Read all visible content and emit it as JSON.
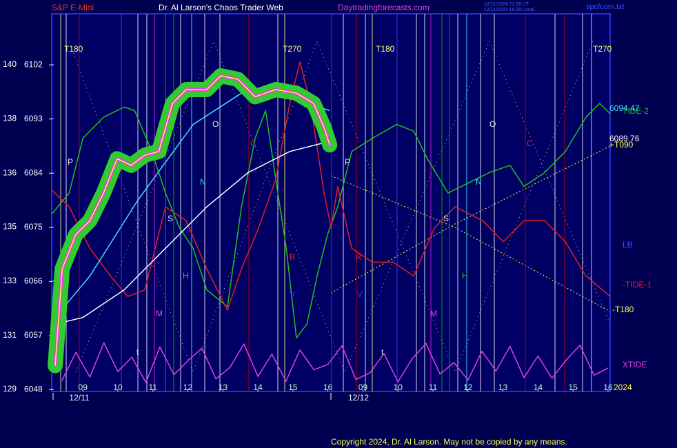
{
  "chart_data": {
    "type": "line",
    "title": "Dr. Al Larson's Chaos Trader Web",
    "header": [
      "S&P E-Mini",
      "Daytradingforecasts.com",
      "12/11/2024 21:38 UT",
      "12/11/2024 16:38 Local",
      "spcfcom.txt"
    ],
    "footer": "Copyright 2024, Dr. Al Larson. May not be copied by any means.",
    "dates": [
      "12/11",
      "12/12"
    ],
    "year": "2024",
    "xlim": [
      -0.89,
      15.06
    ],
    "ylim": [
      6047.7,
      6110.5
    ],
    "y2lim": [
      128.93,
      141.73
    ],
    "xticks": [
      {
        "value": 0,
        "label": "09"
      },
      {
        "value": 1,
        "label": "10"
      },
      {
        "value": 2,
        "label": "11"
      },
      {
        "value": 3,
        "label": "12"
      },
      {
        "value": 4,
        "label": "13"
      },
      {
        "value": 5,
        "label": "14"
      },
      {
        "value": 6,
        "label": "15"
      },
      {
        "value": 7,
        "label": "16"
      },
      {
        "value": 8,
        "label": "09"
      },
      {
        "value": 9,
        "label": "10"
      },
      {
        "value": 10,
        "label": "11"
      },
      {
        "value": 11,
        "label": "12"
      },
      {
        "value": 12,
        "label": "13"
      },
      {
        "value": 13,
        "label": "14"
      },
      {
        "value": 14,
        "label": "15"
      },
      {
        "value": 15,
        "label": "16"
      }
    ],
    "yticks": [
      6048,
      6057,
      6066,
      6075,
      6084,
      6093,
      6102
    ],
    "y2ticks": [
      {
        "value": 129.0,
        "label": "129"
      },
      {
        "value": 130.83,
        "label": "131"
      },
      {
        "value": 132.67,
        "label": "133"
      },
      {
        "value": 134.5,
        "label": "135"
      },
      {
        "value": 136.33,
        "label": "136"
      },
      {
        "value": 138.17,
        "label": "138"
      },
      {
        "value": 140.0,
        "label": "140"
      }
    ],
    "series": [
      {
        "name": "TIDE-2",
        "color": "#20c020",
        "x": [
          -0.89,
          -0.39,
          0,
          0.59,
          1.18,
          1.48,
          1.97,
          2.36,
          2.76,
          3.15,
          3.54,
          4.13,
          4.53,
          4.92,
          5.22,
          5.51,
          5.81,
          6.1,
          6.4,
          6.69,
          6.99,
          7.28,
          7.68,
          8.27,
          8.96,
          9.45,
          9.84,
          10.43,
          11.02,
          11.61,
          12.2,
          12.6,
          13.19,
          13.78,
          14.37,
          14.76,
          15.06
        ],
        "values": [
          6077.2,
          6080.7,
          6089.8,
          6093.3,
          6095.0,
          6094.4,
          6087.6,
          6080.7,
          6074.9,
          6071.5,
          6064.6,
          6061.8,
          6078.4,
          6089.8,
          6094.4,
          6083.0,
          6071.5,
          6056.6,
          6058.9,
          6066.9,
          6073.8,
          6078.4,
          6087.6,
          6089.8,
          6092.1,
          6091.0,
          6086.4,
          6080.7,
          6082.4,
          6084.1,
          6085.3,
          6081.8,
          6084.1,
          6087.6,
          6093.3,
          6095.6,
          6093.9
        ]
      },
      {
        "name": "-TIDE-1",
        "color": "#e02020",
        "x": [
          -0.89,
          -0.39,
          0.2,
          0.79,
          1.28,
          1.77,
          2.36,
          2.95,
          3.54,
          4.13,
          4.53,
          5.02,
          5.51,
          5.91,
          6.2,
          6.5,
          6.89,
          7.09,
          7.28,
          7.68,
          8.27,
          8.86,
          9.45,
          10.04,
          10.63,
          11.42,
          12.01,
          12.6,
          13.19,
          13.78,
          14.37,
          15.06
        ],
        "values": [
          6081.2,
          6078.4,
          6071.5,
          6066.9,
          6063.5,
          6064.6,
          6078.4,
          6076.1,
          6068.1,
          6061.2,
          6068.1,
          6074.9,
          6083.0,
          6095.6,
          6102.5,
          6095.6,
          6080.7,
          6074.9,
          6081.8,
          6071.5,
          6069.2,
          6069.2,
          6066.9,
          6074.9,
          6078.4,
          6076.1,
          6072.6,
          6076.1,
          6076.1,
          6072.6,
          6066.9,
          6063.5
        ]
      },
      {
        "name": "XTIDE",
        "color": "#e040e0",
        "x": [
          -0.6,
          -0.2,
          0.2,
          0.6,
          1.0,
          1.4,
          1.8,
          2.2,
          2.6,
          3.0,
          3.4,
          3.8,
          4.2,
          4.6,
          5.0,
          5.4,
          5.8,
          6.2,
          6.6,
          7.0,
          7.4,
          7.8,
          8.2,
          8.6,
          9.0,
          9.4,
          9.8,
          10.2,
          10.6,
          11.0,
          11.4,
          11.8,
          12.2,
          12.6,
          13.0,
          13.4,
          13.8,
          14.2,
          14.6,
          15.0
        ],
        "values": [
          6049.5,
          6054.2,
          6050.1,
          6055.8,
          6051.0,
          6053.4,
          6049.2,
          6055.1,
          6050.5,
          6052.8,
          6054.9,
          6049.8,
          6051.7,
          6055.6,
          6050.2,
          6053.9,
          6049.4,
          6054.6,
          6051.3,
          6052.2,
          6055.3,
          6049.7,
          6050.8,
          6054.0,
          6049.3,
          6053.1,
          6055.7,
          6050.6,
          6052.5,
          6049.6,
          6054.4,
          6051.1,
          6055.2,
          6050.0,
          6053.6,
          6049.9,
          6052.9,
          6055.4,
          6050.4,
          6051.6
        ]
      },
      {
        "color": "#ffffff",
        "x": [
          -0.79,
          0,
          1.18,
          2.36,
          3.54,
          4.72,
          5.91,
          7.05
        ],
        "values": [
          6058.9,
          6060.0,
          6064.6,
          6071.5,
          6078.4,
          6084.1,
          6087.6,
          6089.3
        ]
      },
      {
        "color": "#40e0ff",
        "x": [
          -0.79,
          0.2,
          1.57,
          3.15,
          4.53,
          5.91,
          7.05
        ],
        "values": [
          6060.0,
          6066.9,
          6079.5,
          6092.1,
          6097.3,
          6096.7,
          6094.4
        ]
      },
      {
        "color": "#ffff40",
        "glow_color": "#30cc30",
        "x": [
          -0.79,
          -0.59,
          -0.2,
          0.2,
          0.59,
          0.98,
          1.38,
          1.77,
          2.17,
          2.56,
          2.95,
          3.54,
          3.94,
          4.43,
          4.92,
          5.51,
          6.1,
          6.59,
          6.89,
          7.05
        ],
        "values": [
          6052.0,
          6068.1,
          6073.8,
          6076.1,
          6080.7,
          6086.4,
          6085.3,
          6087.0,
          6087.6,
          6095.6,
          6097.9,
          6097.9,
          6100.2,
          6099.6,
          6096.7,
          6097.9,
          6097.3,
          6095.6,
          6091.6,
          6088.7
        ]
      }
    ],
    "annotations": [
      "T180",
      "T270",
      "T180",
      "T270",
      "P",
      "O",
      "N",
      "S",
      "H",
      "M",
      "C",
      "R",
      "V",
      "t",
      "P",
      "O",
      "N",
      "S",
      "H",
      "M",
      "C",
      "R",
      "V",
      "t",
      "LB",
      "+T090",
      "-T180",
      "6094.47",
      "6089.76"
    ]
  }
}
